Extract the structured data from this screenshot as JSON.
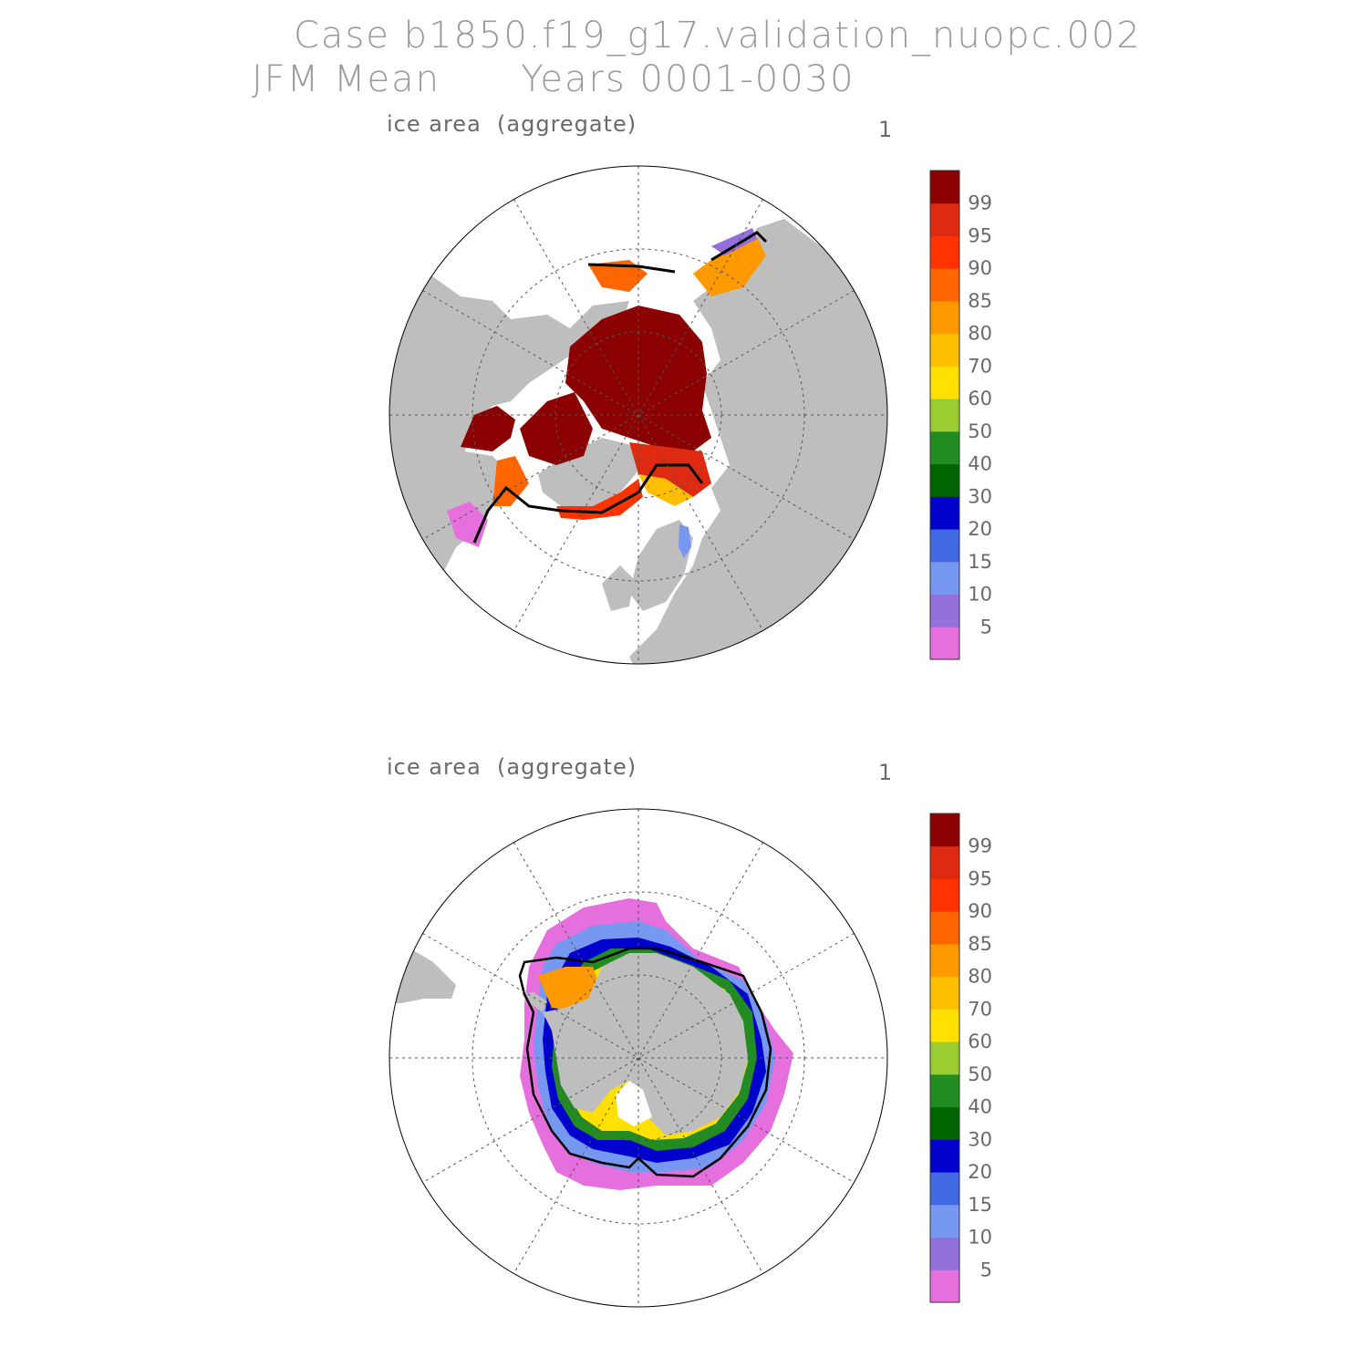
{
  "header": {
    "case_title": "Case b1850.f19_g17.validation_nuopc.002",
    "period_title": "JFM Mean      Years 0001-0030"
  },
  "panels": [
    {
      "id": "north",
      "title": "ice area  (aggregate)",
      "number": "1",
      "hemisphere": "Northern"
    },
    {
      "id": "south",
      "title": "ice area  (aggregate)",
      "number": "1",
      "hemisphere": "Southern"
    }
  ],
  "colorbar": {
    "colors": [
      "#e46fdd",
      "#9370db",
      "#7698f0",
      "#4169e1",
      "#0000cd",
      "#006400",
      "#228b22",
      "#9acd32",
      "#ffe000",
      "#ffbf00",
      "#ff9900",
      "#ff6600",
      "#ff3300",
      "#dd2a10",
      "#8b0000"
    ],
    "labels": [
      "5",
      "10",
      "15",
      "20",
      "30",
      "40",
      "50",
      "60",
      "70",
      "80",
      "85",
      "90",
      "95",
      "99"
    ]
  },
  "colors": {
    "land": "#bebebe",
    "ocean": "#ffffff",
    "outline": "#000000",
    "grid": "#555555"
  }
}
